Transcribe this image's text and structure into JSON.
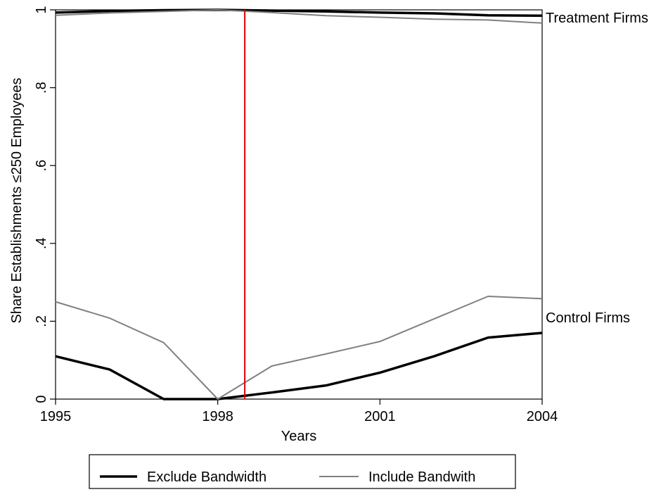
{
  "chart_data": {
    "type": "line",
    "xlabel": "Years",
    "ylabel": "Share Establishments ≤250 Employees",
    "xlim": [
      1995,
      2004
    ],
    "ylim": [
      0,
      1
    ],
    "x_ticks": [
      "1995",
      "1998",
      "2001",
      "2004"
    ],
    "y_ticks": [
      "0",
      ".2",
      ".4",
      ".6",
      ".8",
      "1"
    ],
    "x": [
      1995,
      1996,
      1997,
      1998,
      1999,
      2000,
      2001,
      2002,
      2003,
      2004
    ],
    "series": [
      {
        "name": "Exclude Bandwidth",
        "group": "Treatment Firms",
        "color": "#000000",
        "values": [
          0.993,
          0.997,
          0.999,
          1.0,
          0.998,
          0.996,
          0.993,
          0.991,
          0.986,
          0.985
        ]
      },
      {
        "name": "Include Bandwith",
        "group": "Treatment Firms",
        "color": "#808080",
        "values": [
          0.986,
          0.992,
          0.996,
          1.0,
          0.993,
          0.985,
          0.981,
          0.976,
          0.974,
          0.966
        ]
      },
      {
        "name": "Exclude Bandwidth",
        "group": "Control Firms",
        "color": "#000000",
        "values": [
          0.11,
          0.076,
          0.0,
          0.0,
          0.017,
          0.035,
          0.068,
          0.11,
          0.158,
          0.17
        ]
      },
      {
        "name": "Include Bandwith",
        "group": "Control Firms",
        "color": "#808080",
        "values": [
          0.25,
          0.208,
          0.145,
          0.0,
          0.085,
          0.116,
          0.148,
          0.206,
          0.264,
          0.258
        ]
      }
    ],
    "vline": {
      "x": 1998.5,
      "color": "#e00000"
    },
    "annotations": [
      "Treatment Firms",
      "Control Firms"
    ],
    "legend": {
      "position": "bottom",
      "entries": [
        {
          "label": "Exclude Bandwidth",
          "color": "#000000"
        },
        {
          "label": "Include Bandwith",
          "color": "#808080"
        }
      ]
    },
    "grid": false
  }
}
